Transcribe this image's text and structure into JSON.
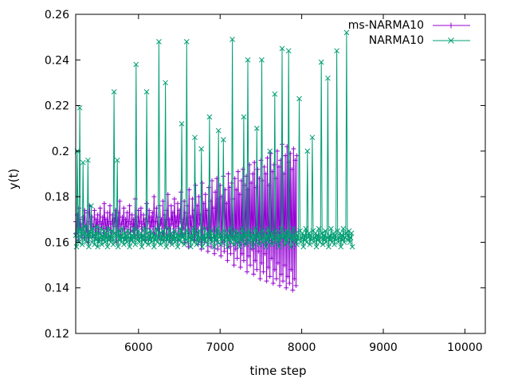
{
  "chart_data": {
    "type": "line",
    "title": "",
    "xlabel": "time step",
    "ylabel": "y(t)",
    "xlim": [
      5230,
      10250
    ],
    "ylim": [
      0.12,
      0.26
    ],
    "x_ticks": [
      6000,
      7000,
      8000,
      9000,
      10000
    ],
    "x_tick_labels": [
      "6000",
      "7000",
      "8000",
      "9000",
      "10000"
    ],
    "y_ticks": [
      0.12,
      0.14,
      0.16,
      0.18,
      0.2,
      0.22,
      0.24,
      0.26
    ],
    "y_tick_labels": [
      "0.12",
      "0.14",
      "0.16",
      "0.18",
      "0.2",
      "0.22",
      "0.24",
      "0.26"
    ],
    "legend_position": "top-right",
    "colors": {
      "ms": "#9400d3",
      "narma": "#009e73"
    },
    "x_step": 10,
    "series": [
      {
        "name": "ms-NARMA10",
        "marker": "plus",
        "color": "#9400d3",
        "start_x": 5230,
        "values": [
          0.169,
          0.164,
          0.172,
          0.161,
          0.175,
          0.166,
          0.17,
          0.163,
          0.168,
          0.171,
          0.162,
          0.174,
          0.167,
          0.165,
          0.173,
          0.16,
          0.169,
          0.176,
          0.164,
          0.168,
          0.171,
          0.163,
          0.167,
          0.174,
          0.162,
          0.17,
          0.166,
          0.172,
          0.161,
          0.169,
          0.175,
          0.164,
          0.168,
          0.171,
          0.163,
          0.177,
          0.166,
          0.17,
          0.162,
          0.173,
          0.165,
          0.169,
          0.176,
          0.161,
          0.168,
          0.172,
          0.164,
          0.17,
          0.167,
          0.174,
          0.16,
          0.169,
          0.173,
          0.165,
          0.178,
          0.163,
          0.168,
          0.171,
          0.166,
          0.175,
          0.162,
          0.17,
          0.167,
          0.173,
          0.164,
          0.169,
          0.176,
          0.161,
          0.168,
          0.172,
          0.165,
          0.17,
          0.163,
          0.179,
          0.166,
          0.171,
          0.162,
          0.174,
          0.167,
          0.169,
          0.175,
          0.163,
          0.168,
          0.172,
          0.165,
          0.17,
          0.161,
          0.177,
          0.166,
          0.169,
          0.174,
          0.162,
          0.171,
          0.167,
          0.173,
          0.164,
          0.18,
          0.163,
          0.169,
          0.175,
          0.166,
          0.171,
          0.162,
          0.176,
          0.168,
          0.17,
          0.164,
          0.178,
          0.161,
          0.172,
          0.167,
          0.174,
          0.163,
          0.181,
          0.166,
          0.17,
          0.16,
          0.176,
          0.168,
          0.173,
          0.162,
          0.179,
          0.165,
          0.171,
          0.167,
          0.177,
          0.161,
          0.174,
          0.169,
          0.182,
          0.163,
          0.17,
          0.166,
          0.178,
          0.16,
          0.173,
          0.168,
          0.176,
          0.158,
          0.183,
          0.165,
          0.171,
          0.162,
          0.179,
          0.167,
          0.174,
          0.161,
          0.185,
          0.164,
          0.176,
          0.159,
          0.18,
          0.168,
          0.172,
          0.157,
          0.186,
          0.163,
          0.177,
          0.16,
          0.181,
          0.166,
          0.174,
          0.156,
          0.184,
          0.162,
          0.178,
          0.158,
          0.187,
          0.165,
          0.175,
          0.155,
          0.182,
          0.161,
          0.188,
          0.157,
          0.179,
          0.164,
          0.185,
          0.154,
          0.18,
          0.16,
          0.189,
          0.156,
          0.183,
          0.163,
          0.177,
          0.152,
          0.19,
          0.158,
          0.184,
          0.155,
          0.186,
          0.162,
          0.179,
          0.15,
          0.188,
          0.157,
          0.183,
          0.153,
          0.191,
          0.16,
          0.181,
          0.149,
          0.187,
          0.155,
          0.192,
          0.152,
          0.185,
          0.159,
          0.189,
          0.147,
          0.183,
          0.154,
          0.194,
          0.15,
          0.186,
          0.157,
          0.19,
          0.146,
          0.195,
          0.152,
          0.184,
          0.148,
          0.192,
          0.156,
          0.188,
          0.144,
          0.196,
          0.151,
          0.187,
          0.147,
          0.193,
          0.155,
          0.19,
          0.143,
          0.197,
          0.149,
          0.185,
          0.145,
          0.199,
          0.153,
          0.191,
          0.142,
          0.194,
          0.148,
          0.188,
          0.144,
          0.2,
          0.151,
          0.193,
          0.141,
          0.196,
          0.146,
          0.203,
          0.143,
          0.19,
          0.15,
          0.198,
          0.14,
          0.202,
          0.145,
          0.195,
          0.142,
          0.199,
          0.148,
          0.192,
          0.139,
          0.201,
          0.144,
          0.196,
          0.141,
          0.198
        ]
      },
      {
        "name": "NARMA10",
        "marker": "cross",
        "color": "#009e73",
        "start_x": 5230,
        "values": [
          0.163,
          0.158,
          0.2,
          0.165,
          0.16,
          0.219,
          0.162,
          0.166,
          0.159,
          0.195,
          0.164,
          0.161,
          0.167,
          0.16,
          0.163,
          0.196,
          0.158,
          0.165,
          0.162,
          0.176,
          0.16,
          0.166,
          0.163,
          0.159,
          0.164,
          0.161,
          0.167,
          0.158,
          0.164,
          0.16,
          0.162,
          0.166,
          0.159,
          0.163,
          0.161,
          0.165,
          0.16,
          0.164,
          0.162,
          0.158,
          0.166,
          0.161,
          0.163,
          0.16,
          0.165,
          0.162,
          0.159,
          0.226,
          0.164,
          0.16,
          0.163,
          0.196,
          0.158,
          0.165,
          0.161,
          0.163,
          0.16,
          0.166,
          0.162,
          0.159,
          0.164,
          0.161,
          0.163,
          0.16,
          0.165,
          0.162,
          0.158,
          0.164,
          0.161,
          0.163,
          0.16,
          0.166,
          0.162,
          0.159,
          0.238,
          0.163,
          0.161,
          0.165,
          0.16,
          0.162,
          0.164,
          0.158,
          0.163,
          0.161,
          0.166,
          0.16,
          0.162,
          0.226,
          0.164,
          0.159,
          0.163,
          0.161,
          0.165,
          0.16,
          0.162,
          0.164,
          0.158,
          0.163,
          0.161,
          0.166,
          0.16,
          0.162,
          0.248,
          0.164,
          0.159,
          0.163,
          0.161,
          0.165,
          0.16,
          0.162,
          0.23,
          0.158,
          0.163,
          0.161,
          0.166,
          0.16,
          0.162,
          0.164,
          0.159,
          0.163,
          0.161,
          0.165,
          0.16,
          0.162,
          0.164,
          0.158,
          0.163,
          0.161,
          0.166,
          0.16,
          0.212,
          0.162,
          0.164,
          0.159,
          0.163,
          0.161,
          0.248,
          0.165,
          0.16,
          0.162,
          0.164,
          0.158,
          0.163,
          0.161,
          0.166,
          0.16,
          0.206,
          0.164,
          0.159,
          0.163,
          0.161,
          0.165,
          0.16,
          0.162,
          0.201,
          0.158,
          0.163,
          0.161,
          0.166,
          0.16,
          0.162,
          0.164,
          0.159,
          0.163,
          0.215,
          0.161,
          0.165,
          0.16,
          0.162,
          0.164,
          0.158,
          0.163,
          0.161,
          0.166,
          0.16,
          0.209,
          0.162,
          0.164,
          0.159,
          0.163,
          0.161,
          0.205,
          0.165,
          0.16,
          0.162,
          0.164,
          0.158,
          0.163,
          0.161,
          0.166,
          0.16,
          0.162,
          0.249,
          0.164,
          0.159,
          0.163,
          0.161,
          0.165,
          0.16,
          0.162,
          0.164,
          0.158,
          0.163,
          0.161,
          0.166,
          0.16,
          0.215,
          0.162,
          0.164,
          0.159,
          0.163,
          0.24,
          0.161,
          0.165,
          0.16,
          0.162,
          0.164,
          0.158,
          0.163,
          0.161,
          0.166,
          0.16,
          0.21,
          0.162,
          0.164,
          0.159,
          0.163,
          0.161,
          0.24,
          0.165,
          0.16,
          0.162,
          0.164,
          0.158,
          0.163,
          0.161,
          0.166,
          0.16,
          0.2,
          0.162,
          0.164,
          0.159,
          0.163,
          0.161,
          0.225,
          0.165,
          0.16,
          0.162,
          0.164,
          0.158,
          0.163,
          0.161,
          0.166,
          0.245,
          0.162,
          0.164,
          0.159,
          0.163,
          0.161,
          0.165,
          0.16,
          0.244,
          0.162,
          0.164,
          0.158,
          0.163,
          0.161,
          0.166,
          0.16,
          0.162,
          0.164,
          0.159,
          0.163,
          0.161,
          0.223,
          0.165,
          0.16,
          0.162,
          0.164,
          0.158,
          0.163,
          0.161,
          0.166,
          0.16,
          0.2,
          0.162,
          0.164,
          0.159,
          0.163,
          0.161,
          0.206,
          0.165,
          0.16,
          0.162,
          0.164,
          0.158,
          0.163,
          0.161,
          0.166,
          0.16,
          0.162,
          0.239,
          0.164,
          0.159,
          0.163,
          0.161,
          0.165,
          0.16,
          0.162,
          0.232,
          0.158,
          0.163,
          0.161,
          0.166,
          0.16,
          0.162,
          0.164,
          0.159,
          0.163,
          0.161,
          0.244,
          0.165,
          0.16,
          0.162,
          0.164,
          0.158,
          0.163,
          0.161,
          0.166,
          0.16,
          0.162,
          0.164,
          0.252,
          0.163,
          0.161,
          0.165,
          0.16,
          0.162,
          0.164,
          0.158
        ]
      }
    ]
  }
}
